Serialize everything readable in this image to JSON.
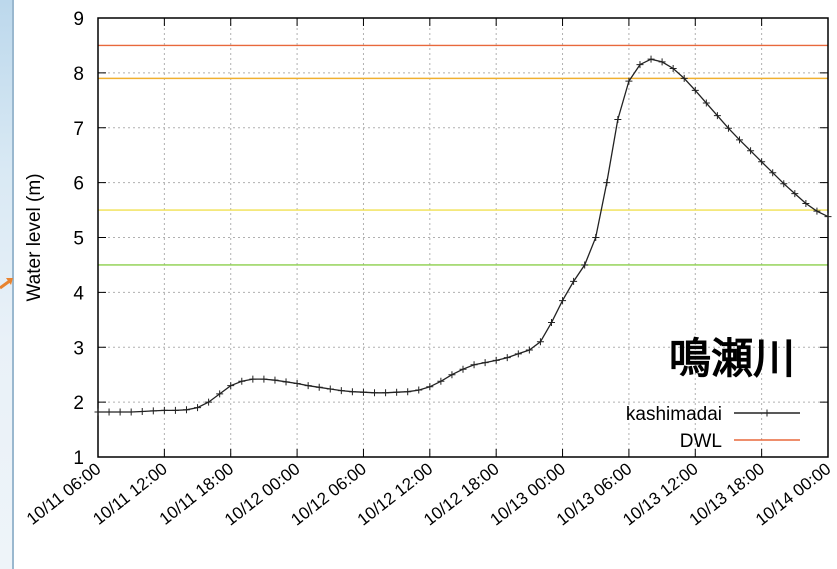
{
  "chart_data": {
    "type": "line",
    "title": "",
    "xlabel": "",
    "ylabel": "Water level (m)",
    "ylim": [
      1,
      9
    ],
    "yticks": [
      "1",
      "2",
      "3",
      "4",
      "5",
      "6",
      "7",
      "8",
      "9"
    ],
    "xticks": [
      "10/11 06:00",
      "10/11 12:00",
      "10/11 18:00",
      "10/12 00:00",
      "10/12 06:00",
      "10/12 12:00",
      "10/12 18:00",
      "10/13 00:00",
      "10/13 06:00",
      "10/13 12:00",
      "10/13 18:00",
      "10/14 00:00"
    ],
    "xlim_hours": [
      0,
      66
    ],
    "grid": true,
    "legend_position": "bottom-right",
    "annotation": "鳴瀬川",
    "series": [
      {
        "name": "kashimadai",
        "color": "#222222",
        "marker": "plus",
        "x_hours": [
          0,
          1,
          2,
          3,
          4,
          5,
          6,
          7,
          8,
          9,
          10,
          11,
          12,
          13,
          14,
          15,
          16,
          17,
          18,
          19,
          20,
          21,
          22,
          23,
          24,
          25,
          26,
          27,
          28,
          29,
          30,
          31,
          32,
          33,
          34,
          35,
          36,
          37,
          38,
          39,
          40,
          41,
          42,
          43,
          44,
          45,
          46,
          47,
          48,
          49,
          50,
          51,
          52,
          53,
          54,
          55,
          56,
          57,
          58,
          59,
          60,
          61,
          62,
          63,
          64,
          65,
          66
        ],
        "values": [
          1.82,
          1.82,
          1.82,
          1.82,
          1.83,
          1.84,
          1.85,
          1.85,
          1.86,
          1.9,
          2.0,
          2.15,
          2.3,
          2.38,
          2.42,
          2.42,
          2.4,
          2.37,
          2.34,
          2.3,
          2.27,
          2.24,
          2.21,
          2.19,
          2.18,
          2.17,
          2.17,
          2.18,
          2.19,
          2.22,
          2.28,
          2.38,
          2.5,
          2.6,
          2.68,
          2.72,
          2.76,
          2.81,
          2.88,
          2.95,
          3.1,
          3.45,
          3.85,
          4.2,
          4.5,
          5.0,
          6.0,
          7.15,
          7.85,
          8.15,
          8.25,
          8.2,
          8.08,
          7.9,
          7.68,
          7.45,
          7.22,
          6.99,
          6.78,
          6.58,
          6.38,
          6.18,
          5.98,
          5.8,
          5.62,
          5.48,
          5.38
        ]
      },
      {
        "name": "DWL",
        "color": "#e8683c",
        "constant": 8.5
      }
    ],
    "reference_lines": [
      {
        "value": 8.5,
        "color": "#e8683c"
      },
      {
        "value": 7.9,
        "color": "#f0b030"
      },
      {
        "value": 5.5,
        "color": "#f0e050"
      },
      {
        "value": 4.5,
        "color": "#8ccf4a"
      }
    ]
  }
}
